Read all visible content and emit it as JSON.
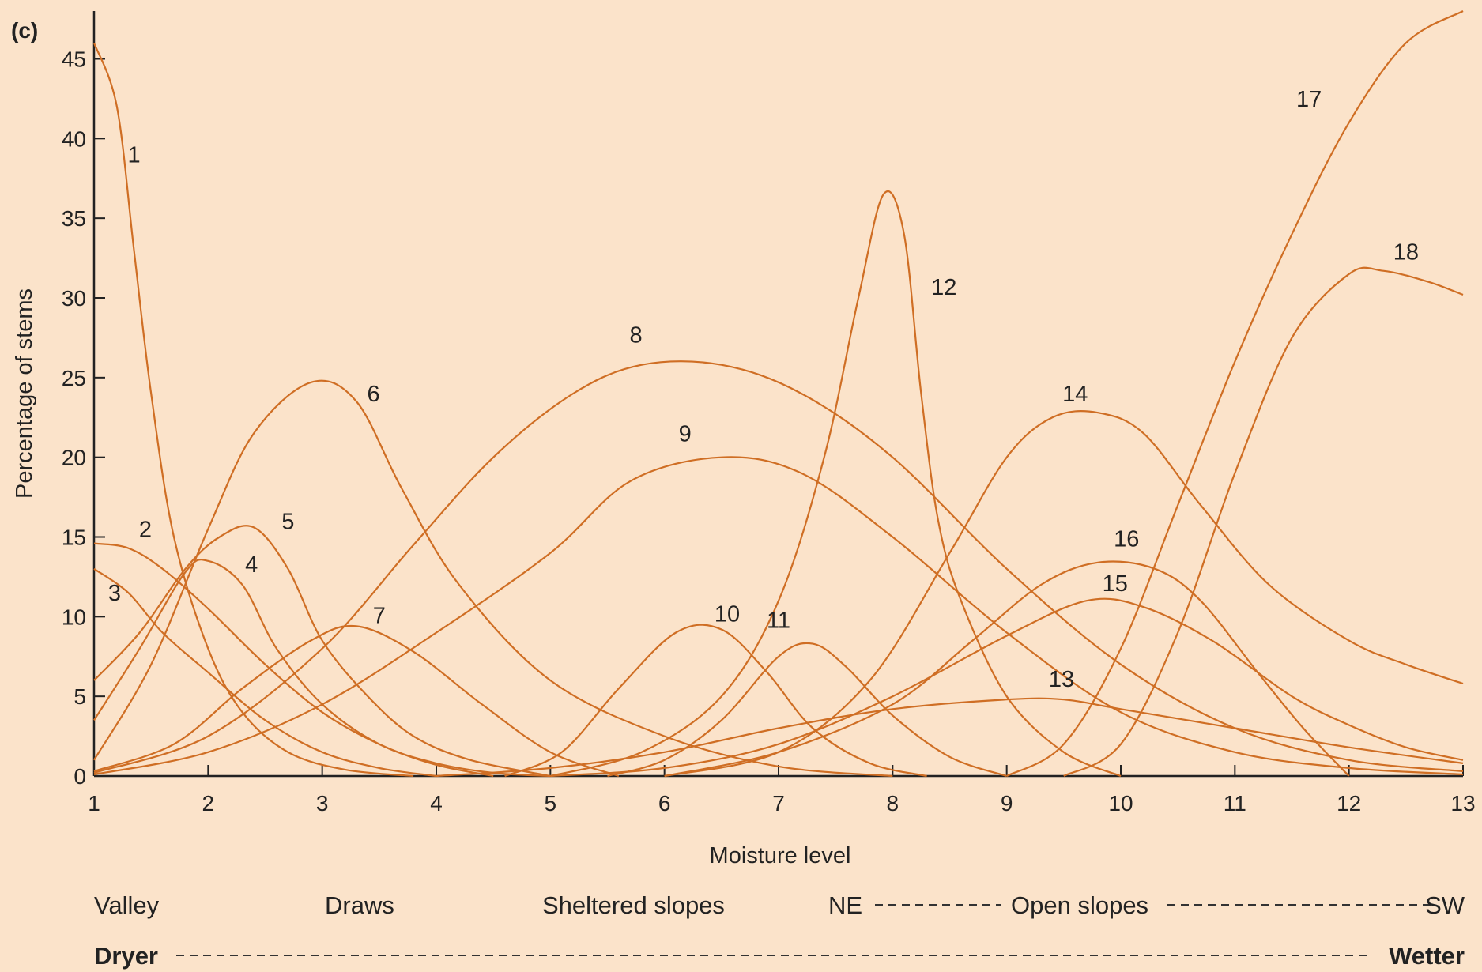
{
  "chart_data": {
    "type": "line",
    "panel_label": "(c)",
    "xlabel": "Moisture level",
    "ylabel": "Percentage of stems",
    "xlim": [
      1,
      13
    ],
    "ylim": [
      0,
      48
    ],
    "xticks": [
      1,
      2,
      3,
      4,
      5,
      6,
      7,
      8,
      9,
      10,
      11,
      12,
      13
    ],
    "yticks": [
      0,
      5,
      10,
      15,
      20,
      25,
      30,
      35,
      40,
      45
    ],
    "grid": false,
    "legend": "none",
    "line_color": "#cf6e24",
    "gradient_labels": {
      "positions": {
        "valley": "Valley",
        "draws": "Draws",
        "sheltered": "Sheltered slopes",
        "ne": "NE",
        "open": "Open slopes",
        "sw": "SW"
      },
      "moisture": {
        "dry": "Dryer",
        "wet": "Wetter"
      }
    },
    "series": [
      {
        "name": "1",
        "label_at": [
          1.35,
          38.5
        ],
        "x": [
          1,
          1.2,
          1.35,
          1.5,
          1.7,
          2,
          2.3,
          2.7,
          3.2,
          3.8
        ],
        "y": [
          46,
          42,
          33,
          24,
          15,
          8,
          4,
          1.5,
          0.4,
          0
        ]
      },
      {
        "name": "2",
        "label_at": [
          1.45,
          15
        ],
        "x": [
          1,
          1.3,
          1.6,
          2,
          2.5,
          3,
          3.5,
          4,
          4.5
        ],
        "y": [
          14.6,
          14.3,
          13,
          10.5,
          7,
          4,
          2,
          0.7,
          0
        ]
      },
      {
        "name": "3",
        "label_at": [
          1.18,
          11
        ],
        "x": [
          1,
          1.3,
          1.6,
          2,
          2.5,
          3,
          3.5,
          4
        ],
        "y": [
          13,
          11.5,
          9,
          6.5,
          3.5,
          1.5,
          0.5,
          0
        ]
      },
      {
        "name": "4",
        "label_at": [
          2.38,
          12.8
        ],
        "x": [
          1,
          1.4,
          1.8,
          2,
          2.3,
          2.6,
          3,
          3.5,
          4,
          4.5,
          5
        ],
        "y": [
          3.5,
          8,
          12.8,
          13.5,
          12,
          8,
          4.5,
          2,
          0.8,
          0.2,
          0
        ]
      },
      {
        "name": "5",
        "label_at": [
          2.7,
          15.5
        ],
        "x": [
          1,
          1.4,
          1.8,
          2.1,
          2.4,
          2.7,
          3,
          3.4,
          3.8,
          4.3,
          5
        ],
        "y": [
          6,
          9,
          13,
          15,
          15.6,
          13,
          8.5,
          5,
          2.5,
          1,
          0
        ]
      },
      {
        "name": "6",
        "label_at": [
          3.45,
          23.5
        ],
        "x": [
          1,
          1.5,
          2,
          2.4,
          2.9,
          3.3,
          3.7,
          4.2,
          5,
          6,
          7,
          8
        ],
        "y": [
          1,
          7,
          15.5,
          21.5,
          24.7,
          23.5,
          18,
          12,
          6,
          2.5,
          0.6,
          0
        ]
      },
      {
        "name": "7",
        "label_at": [
          3.5,
          9.6
        ],
        "x": [
          1,
          1.7,
          2.3,
          2.9,
          3.3,
          3.8,
          4.4,
          5,
          5.6
        ],
        "y": [
          0.3,
          2,
          5.5,
          8.5,
          9.4,
          7.8,
          4.5,
          1.5,
          0
        ]
      },
      {
        "name": "8",
        "label_at": [
          5.75,
          27.2
        ],
        "x": [
          1,
          2,
          3,
          3.8,
          4.5,
          5.2,
          5.8,
          6.5,
          7.2,
          8,
          9,
          10,
          11,
          12,
          13
        ],
        "y": [
          0.2,
          2.5,
          8,
          14.5,
          20,
          24,
          25.8,
          25.8,
          24,
          20,
          13,
          7,
          3,
          1,
          0.3
        ]
      },
      {
        "name": "9",
        "label_at": [
          6.18,
          21
        ],
        "x": [
          1,
          2,
          3,
          4,
          5,
          5.7,
          6.5,
          7.2,
          8,
          9,
          10,
          11,
          12,
          13
        ],
        "y": [
          0.1,
          1.5,
          4.5,
          9,
          14,
          18.5,
          20,
          19,
          15,
          9,
          4,
          1.5,
          0.5,
          0.1
        ]
      },
      {
        "name": "10",
        "label_at": [
          6.55,
          9.7
        ],
        "x": [
          4.6,
          5.1,
          5.6,
          6.1,
          6.5,
          6.9,
          7.3,
          7.8,
          8.3
        ],
        "y": [
          0,
          1.5,
          5.5,
          9,
          9.2,
          6.5,
          3,
          0.8,
          0
        ]
      },
      {
        "name": "11",
        "label_at": [
          7,
          9.3
        ],
        "x": [
          5.5,
          6,
          6.5,
          7,
          7.3,
          7.6,
          8,
          8.5,
          9
        ],
        "y": [
          0,
          1,
          3.5,
          7.5,
          8.3,
          6.8,
          3.8,
          1.2,
          0
        ]
      },
      {
        "name": "12",
        "label_at": [
          8.45,
          30.2
        ],
        "x": [
          5,
          5.8,
          6.5,
          7,
          7.4,
          7.7,
          7.92,
          8.1,
          8.25,
          8.4,
          8.6,
          9,
          9.5,
          10
        ],
        "y": [
          0,
          1.5,
          5,
          11,
          20,
          30,
          36.5,
          34,
          24,
          16,
          11,
          5,
          1.5,
          0
        ]
      },
      {
        "name": "13",
        "label_at": [
          9.48,
          5.6
        ],
        "x": [
          4,
          5,
          6,
          7,
          8,
          9,
          9.5,
          10,
          11,
          12,
          13
        ],
        "y": [
          0,
          0.5,
          1.5,
          3,
          4.2,
          4.8,
          4.8,
          4.2,
          3,
          1.8,
          0.8
        ]
      },
      {
        "name": "14",
        "label_at": [
          9.6,
          23.5
        ],
        "x": [
          6,
          7,
          7.8,
          8.5,
          9,
          9.4,
          9.8,
          10.2,
          10.7,
          11.3,
          12,
          12.5,
          13
        ],
        "y": [
          0,
          1.5,
          6,
          14,
          20,
          22.5,
          22.8,
          21.5,
          17,
          12,
          8.5,
          7,
          5.8
        ]
      },
      {
        "name": "15",
        "label_at": [
          9.95,
          11.6
        ],
        "x": [
          5,
          6,
          7,
          8,
          9,
          9.7,
          10.2,
          10.8,
          11.5,
          12,
          12.5,
          13
        ],
        "y": [
          0,
          0.5,
          2,
          5,
          8.8,
          11,
          10.6,
          8.5,
          5,
          3.2,
          1.8,
          1
        ]
      },
      {
        "name": "16",
        "label_at": [
          10.05,
          14.4
        ],
        "x": [
          6,
          7,
          8,
          8.7,
          9.3,
          9.8,
          10.3,
          10.7,
          11.2,
          11.6,
          12
        ],
        "y": [
          0,
          1.5,
          4.5,
          8.5,
          12,
          13.4,
          13,
          11,
          6.5,
          3,
          0
        ]
      },
      {
        "name": "17",
        "label_at": [
          11.65,
          42
        ],
        "x": [
          9,
          9.5,
          10,
          10.5,
          11,
          11.5,
          12,
          12.5,
          13
        ],
        "y": [
          0,
          2,
          8,
          17,
          26,
          34,
          41,
          46,
          48
        ]
      },
      {
        "name": "18",
        "label_at": [
          12.5,
          32.4
        ],
        "x": [
          9.5,
          10,
          10.5,
          11,
          11.5,
          12,
          12.3,
          12.7,
          13
        ],
        "y": [
          0,
          2,
          9,
          19,
          27.5,
          31.5,
          31.7,
          31,
          30.2
        ]
      }
    ]
  }
}
